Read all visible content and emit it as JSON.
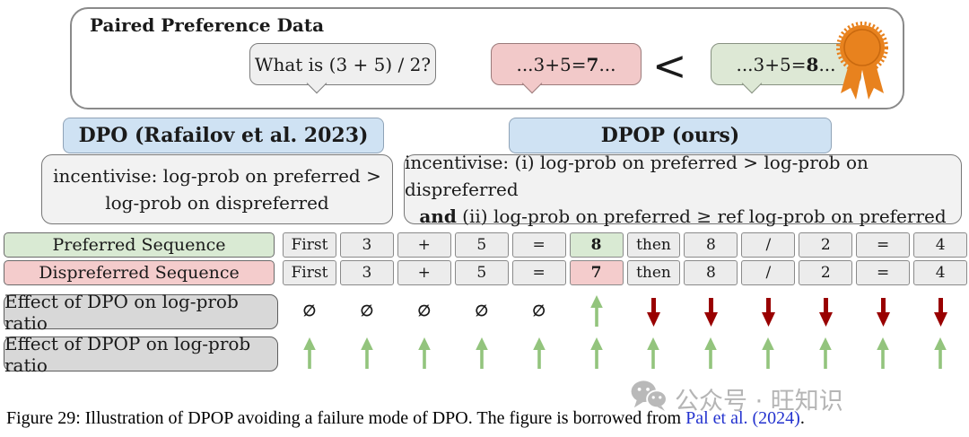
{
  "panel": {
    "title": "Paired Preference Data",
    "question_bubble": "What is (3 + 5) / 2?",
    "rejected_bubble": {
      "prefix": "...3+5=",
      "value": "7",
      "suffix": "..."
    },
    "comparator": "<",
    "chosen_bubble": {
      "prefix": "...3+5=",
      "value": "8",
      "suffix": "..."
    },
    "award_icon": "orange-rosette-ribbon"
  },
  "dpo": {
    "header": "DPO (Rafailov et al. 2023)",
    "body_line1": "incentivise: log-prob on preferred >",
    "body_line2": "log-prob on dispreferred"
  },
  "dpop": {
    "header": "DPOP (ours)",
    "body_line1": "incentivise: (i) log-prob on preferred > log-prob on dispreferred",
    "body_line2_bold": "and",
    "body_line2_rest": " (ii) log-prob on preferred ≥ ref log-prob on preferred"
  },
  "sequence_table": {
    "rows": [
      {
        "label": "Preferred Sequence",
        "label_color": "green",
        "cells": [
          "First",
          "3",
          "+",
          "5",
          "=",
          "8",
          "then",
          "8",
          "/",
          "2",
          "=",
          "4"
        ],
        "highlight_index": 5,
        "highlight_color": "green"
      },
      {
        "label": "Dispreferred Sequence",
        "label_color": "pink",
        "cells": [
          "First",
          "3",
          "+",
          "5",
          "=",
          "7",
          "then",
          "8",
          "/",
          "2",
          "=",
          "4"
        ],
        "highlight_index": 5,
        "highlight_color": "pink"
      }
    ]
  },
  "effects": {
    "rows": [
      {
        "label": "Effect of DPO on log-prob ratio",
        "symbols": [
          "none",
          "none",
          "none",
          "none",
          "none",
          "up",
          "down",
          "down",
          "down",
          "down",
          "down",
          "down"
        ]
      },
      {
        "label": "Effect of DPOP on log-prob ratio",
        "symbols": [
          "up",
          "up",
          "up",
          "up",
          "up",
          "up",
          "up",
          "up",
          "up",
          "up",
          "up",
          "up"
        ]
      }
    ],
    "none_glyph": "∅"
  },
  "caption": {
    "prefix": "Figure 29: Illustration of DPOP avoiding a failure mode of DPO. The figure is borrowed from ",
    "link": "Pal et al. (2024)",
    "suffix": "."
  },
  "watermark": {
    "text": "公众号 · 旺知识",
    "icon": "wechat-icon"
  },
  "colors": {
    "green_fill": "#d9ead3",
    "pink_fill": "#f4cccc",
    "blue_fill": "#cfe2f3",
    "gray_fill": "#f2f2f2",
    "label_gray_fill": "#d8d8d8",
    "cell_fill": "#ececec",
    "up_arrow": "#93c47d",
    "down_arrow": "#990000",
    "award_orange": "#e8821e",
    "link_blue": "#2433cf",
    "watermark_gray": "#b5b5b5"
  }
}
